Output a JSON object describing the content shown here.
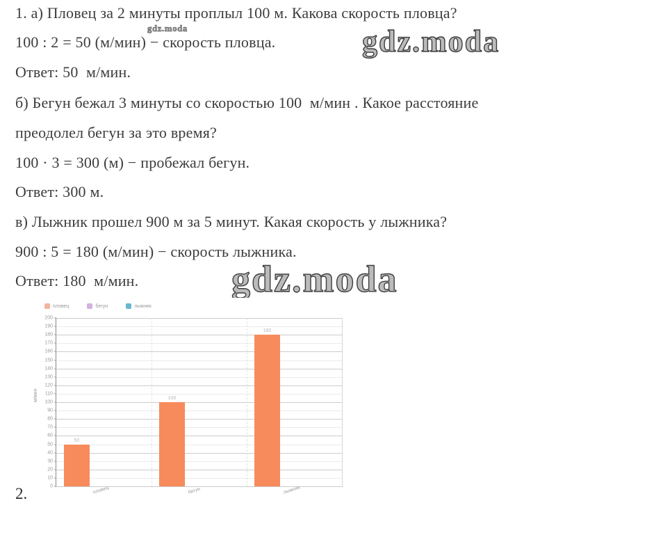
{
  "page": {
    "background": "#ffffff",
    "text_color": "#3c3c3c"
  },
  "watermark": {
    "small": "gdz.moda",
    "large": "gdz.moda"
  },
  "solution": {
    "line1": "1. а) Пловец за 2 минуты проплыл 100 м. Какова скорость пловца?",
    "line2": "100 : 2 = 50 (м/мин) − скорость пловца.",
    "line3": "Ответ: 50  м/мин.",
    "line4": "б) Бегун бежал 3 минуты со скоростью 100  м/мин . Какое расстояние",
    "line5": "преодолел бегун за это время?",
    "line6": "100 · 3 = 300 (м) − пробежал бегун.",
    "line7": "Ответ: 300 м.",
    "line8": "в) Лыжник прошел 900 м за 5 минут. Какая скорость у лыжника?",
    "line9": "900 : 5 = 180 (м/мин) − скорость лыжника.",
    "line10": "Ответ: 180  м/мин."
  },
  "next_problem_number": "2.",
  "chart_data": {
    "type": "bar",
    "categories": [
      "пловец",
      "бегун",
      "лыжник"
    ],
    "values": [
      50,
      100,
      180
    ],
    "value_labels": [
      "50",
      "100",
      "180"
    ],
    "title": "",
    "xlabel": "",
    "ylabel": "м/мин",
    "ylim": [
      0,
      200
    ],
    "ytick_step": 10,
    "grid": true,
    "legend_position": "top-left",
    "bar_color": "#f78b5c",
    "legend": [
      {
        "label": "пловец",
        "color": "#f0a184"
      },
      {
        "label": "бегун",
        "color": "#c79fd6"
      },
      {
        "label": "лыжник",
        "color": "#45a5c6"
      }
    ]
  }
}
